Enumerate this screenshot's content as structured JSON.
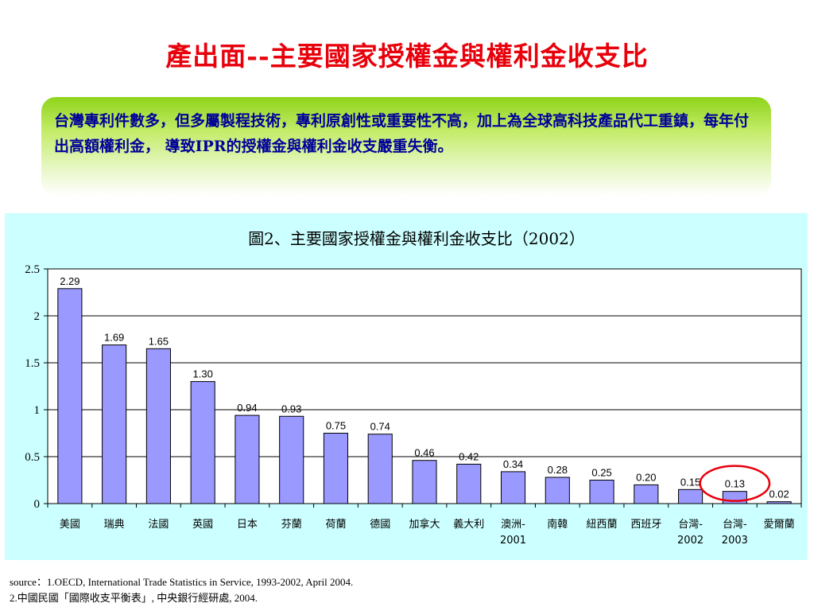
{
  "slide": {
    "title": "產出面--主要國家授權金與權利金收支比"
  },
  "callout": {
    "text": "台灣專利件數多，但多屬製程技術，專利原創性或重要性不高，加上為全球高科技產品代工重鎮，每年付出高額權利金， 導致IPR的授權金與權利金收支嚴重失衡。"
  },
  "chart_data": {
    "type": "bar",
    "title": "圖2、主要國家授權金與權利金收支比（2002）",
    "categories": [
      [
        "美國"
      ],
      [
        "瑞典"
      ],
      [
        "法國"
      ],
      [
        "英國"
      ],
      [
        "日本"
      ],
      [
        "芬蘭"
      ],
      [
        "荷蘭"
      ],
      [
        "德國"
      ],
      [
        "加拿大"
      ],
      [
        "義大利"
      ],
      [
        "澳洲-",
        "2001"
      ],
      [
        "南韓"
      ],
      [
        "紐西蘭"
      ],
      [
        "西班牙"
      ],
      [
        "台灣-",
        "2002"
      ],
      [
        "台灣-",
        "2003"
      ],
      [
        "愛爾蘭"
      ]
    ],
    "values": [
      2.29,
      1.69,
      1.65,
      1.3,
      0.94,
      0.93,
      0.75,
      0.74,
      0.46,
      0.42,
      0.34,
      0.28,
      0.25,
      0.2,
      0.15,
      0.13,
      0.02
    ],
    "value_labels": [
      "2.29",
      "1.69",
      "1.65",
      "1.30",
      "0.94",
      "0.93",
      "0.75",
      "0.74",
      "0.46",
      "0.42",
      "0.34",
      "0.28",
      "0.25",
      "0.20",
      "0.15",
      "0.13",
      "0.02"
    ],
    "ylim": [
      0,
      2.5
    ],
    "yticks": [
      0,
      0.5,
      1,
      1.5,
      2,
      2.5
    ],
    "ytick_labels": [
      "0",
      "0.5",
      "1",
      "1.5",
      "2",
      "2.5"
    ],
    "grid": true,
    "legend": "none",
    "highlight_index": 15,
    "colors": {
      "bar_fill": "#9999ff",
      "bar_stroke": "#000000",
      "plot_bg": "#ffffff",
      "panel_bg": "#ccffff",
      "highlight_ring": "#e8000b"
    }
  },
  "source": {
    "line1": "source：1.OECD, International Trade Statistics in Service, 1993-2002, April 2004.",
    "line2": " 2.中國民國「國際收支平衡表」, 中央銀行經研處, 2004."
  }
}
